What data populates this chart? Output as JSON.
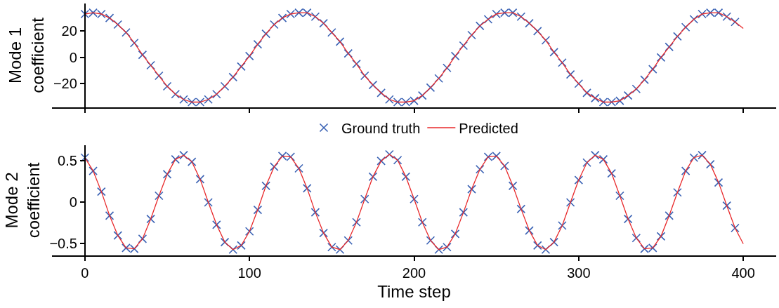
{
  "chart_data": [
    {
      "type": "line",
      "ylabel": "Mode 1\ncoefficient",
      "xlim": [
        -20,
        420
      ],
      "xticks": [
        0,
        100,
        200,
        300,
        400
      ],
      "ylim": [
        -38,
        41
      ],
      "yticks": [
        -20,
        0,
        20
      ],
      "tick_labels": "y",
      "grid": false,
      "legend": "bottom",
      "x": [
        0,
        5,
        10,
        15,
        20,
        25,
        30,
        35,
        40,
        45,
        50,
        55,
        60,
        65,
        70,
        75,
        80,
        85,
        90,
        95,
        100,
        105,
        110,
        115,
        120,
        125,
        130,
        135,
        140,
        145,
        150,
        155,
        160,
        165,
        170,
        175,
        180,
        185,
        190,
        195,
        200,
        205,
        210,
        215,
        220,
        225,
        230,
        235,
        240,
        245,
        250,
        255,
        260,
        265,
        270,
        275,
        280,
        285,
        290,
        295,
        300,
        305,
        310,
        315,
        320,
        325,
        330,
        335,
        340,
        345,
        350,
        355,
        360,
        365,
        370,
        375,
        380,
        385,
        390,
        395,
        400
      ],
      "series": [
        {
          "name": "Ground truth",
          "type": "scatter",
          "marker": "cross",
          "color": "#3a62b4",
          "values": [
            33,
            34,
            33,
            30,
            25,
            19,
            11,
            2,
            -6,
            -14,
            -22,
            -28,
            -32,
            -34,
            -34,
            -32,
            -28,
            -22,
            -15,
            -7,
            1,
            10,
            18,
            25,
            30,
            33,
            34,
            34,
            31,
            26,
            19,
            12,
            3,
            -5,
            -14,
            -21,
            -27,
            -32,
            -34,
            -34,
            -33,
            -29,
            -23,
            -16,
            -8,
            1,
            9,
            17,
            24,
            29,
            33,
            34,
            34,
            31,
            26,
            20,
            13,
            4,
            -4,
            -13,
            -20,
            -27,
            -31,
            -34,
            -34,
            -33,
            -29,
            -24,
            -17,
            -9,
            0,
            8,
            16,
            23,
            29,
            33,
            34,
            34,
            31,
            27,
            null
          ]
        },
        {
          "name": "Predicted",
          "type": "line",
          "marker": "none",
          "line_style": "solid",
          "color": "#e8282a",
          "values": [
            33,
            34,
            33,
            30,
            25,
            19,
            11,
            2,
            -6,
            -14,
            -22,
            -28,
            -32,
            -34,
            -34,
            -32,
            -28,
            -22,
            -15,
            -7,
            1,
            10,
            18,
            25,
            30,
            33,
            34,
            34,
            31,
            26,
            19,
            12,
            3,
            -5,
            -14,
            -21,
            -27,
            -32,
            -34,
            -34,
            -33,
            -29,
            -23,
            -16,
            -8,
            1,
            9,
            17,
            24,
            29,
            33,
            34,
            34,
            31,
            26,
            20,
            13,
            4,
            -4,
            -13,
            -20,
            -27,
            -31,
            -34,
            -34,
            -33,
            -29,
            -24,
            -17,
            -9,
            0,
            8,
            16,
            23,
            29,
            33,
            34,
            34,
            31,
            27,
            22
          ]
        }
      ]
    },
    {
      "type": "line",
      "ylabel": "Mode 2\ncoefficient",
      "xlabel": "Time step",
      "xlim": [
        -20,
        420
      ],
      "xticks": [
        0,
        100,
        200,
        300,
        400
      ],
      "ylim": [
        -0.64,
        0.69
      ],
      "yticks": [
        -0.5,
        0,
        0.5
      ],
      "grid": false,
      "x": [
        0,
        5,
        10,
        15,
        20,
        25,
        30,
        35,
        40,
        45,
        50,
        55,
        60,
        65,
        70,
        75,
        80,
        85,
        90,
        95,
        100,
        105,
        110,
        115,
        120,
        125,
        130,
        135,
        140,
        145,
        150,
        155,
        160,
        165,
        170,
        175,
        180,
        185,
        190,
        195,
        200,
        205,
        210,
        215,
        220,
        225,
        230,
        235,
        240,
        245,
        250,
        255,
        260,
        265,
        270,
        275,
        280,
        285,
        290,
        295,
        300,
        305,
        310,
        315,
        320,
        325,
        330,
        335,
        340,
        345,
        350,
        355,
        360,
        365,
        370,
        375,
        380,
        385,
        390,
        395,
        400
      ],
      "series": [
        {
          "type": "scatter",
          "marker": "cross",
          "color": "#3a62b4",
          "values": [
            0.54,
            0.38,
            0.13,
            -0.16,
            -0.4,
            -0.55,
            -0.56,
            -0.44,
            -0.2,
            0.08,
            0.34,
            0.52,
            0.57,
            0.49,
            0.28,
            0.0,
            -0.27,
            -0.48,
            -0.57,
            -0.52,
            -0.35,
            -0.09,
            0.2,
            0.43,
            0.56,
            0.55,
            0.41,
            0.17,
            -0.12,
            -0.37,
            -0.54,
            -0.57,
            -0.46,
            -0.24,
            0.04,
            0.31,
            0.5,
            0.58,
            0.51,
            0.31,
            0.04,
            -0.24,
            -0.46,
            -0.57,
            -0.54,
            -0.38,
            -0.12,
            0.16,
            0.4,
            0.55,
            0.56,
            0.44,
            0.2,
            -0.08,
            -0.34,
            -0.52,
            -0.57,
            -0.48,
            -0.28,
            0.0,
            0.27,
            0.48,
            0.57,
            0.52,
            0.35,
            0.08,
            -0.2,
            -0.43,
            -0.56,
            -0.55,
            -0.41,
            -0.16,
            0.12,
            0.38,
            0.54,
            0.57,
            0.46,
            0.24,
            -0.04,
            -0.31,
            null
          ]
        },
        {
          "type": "line",
          "marker": "none",
          "line_style": "solid",
          "color": "#e8282a",
          "values": [
            0.54,
            0.38,
            0.13,
            -0.16,
            -0.4,
            -0.55,
            -0.56,
            -0.44,
            -0.2,
            0.08,
            0.34,
            0.52,
            0.57,
            0.49,
            0.28,
            0.0,
            -0.27,
            -0.48,
            -0.57,
            -0.52,
            -0.35,
            -0.09,
            0.2,
            0.43,
            0.56,
            0.55,
            0.41,
            0.17,
            -0.12,
            -0.37,
            -0.54,
            -0.57,
            -0.46,
            -0.24,
            0.04,
            0.31,
            0.5,
            0.58,
            0.51,
            0.31,
            0.04,
            -0.24,
            -0.46,
            -0.57,
            -0.54,
            -0.38,
            -0.12,
            0.16,
            0.4,
            0.55,
            0.56,
            0.44,
            0.2,
            -0.08,
            -0.34,
            -0.52,
            -0.57,
            -0.48,
            -0.28,
            0.0,
            0.27,
            0.48,
            0.57,
            0.52,
            0.35,
            0.08,
            -0.2,
            -0.43,
            -0.56,
            -0.55,
            -0.41,
            -0.16,
            0.12,
            0.38,
            0.54,
            0.57,
            0.46,
            0.24,
            -0.04,
            -0.31,
            -0.5
          ]
        }
      ]
    }
  ]
}
